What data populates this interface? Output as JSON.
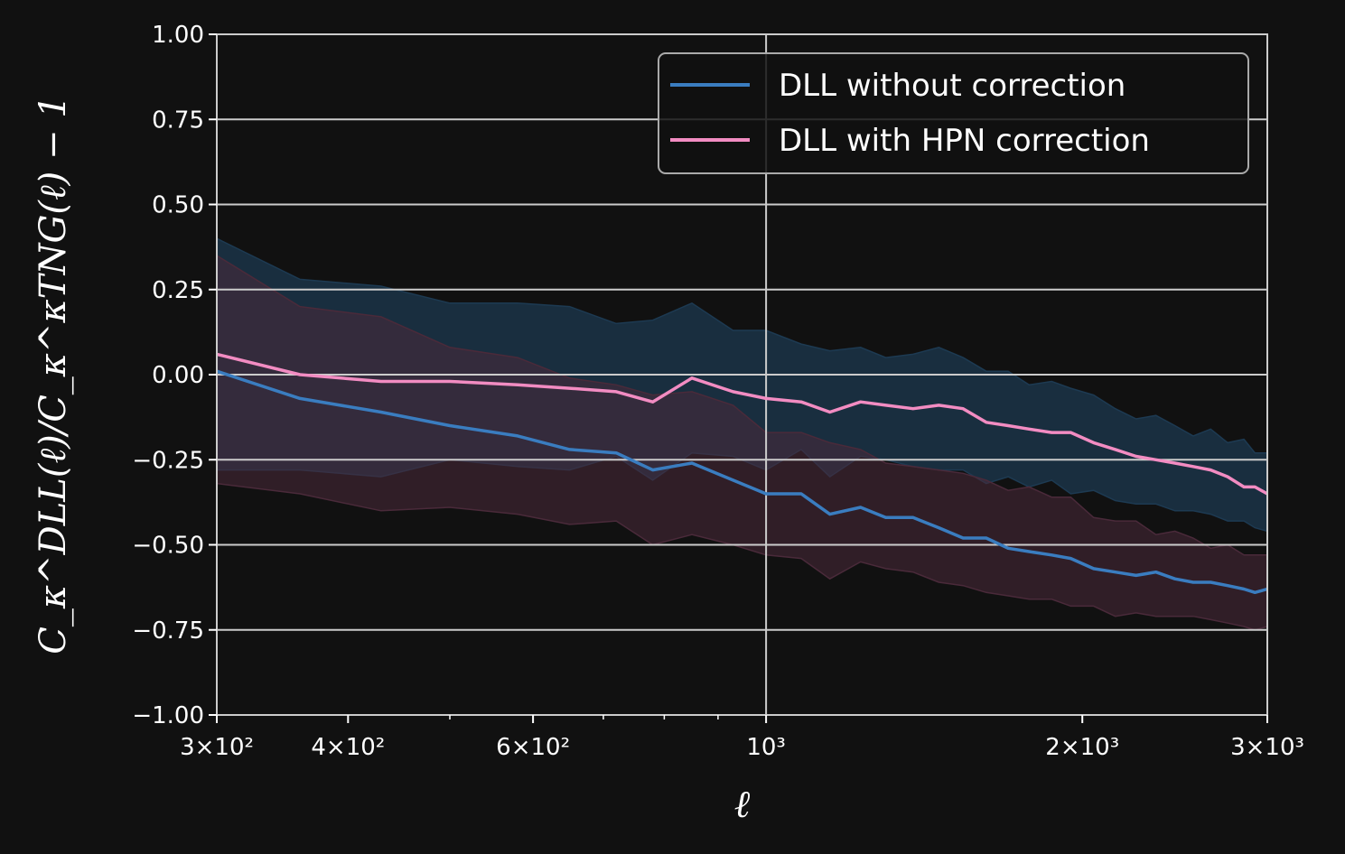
{
  "chart_data": {
    "type": "line",
    "xscale": "log",
    "xlim": [
      300,
      3000
    ],
    "ylim": [
      -1.0,
      1.0
    ],
    "grid": true,
    "legend_position": "upper-right",
    "xlabel": "ℓ",
    "ylabel": "C_κ^DLL(ℓ)/C_κ^κTNG(ℓ) − 1",
    "x_ticks": [
      {
        "value": 300,
        "label": "3×10²"
      },
      {
        "value": 400,
        "label": "4×10²"
      },
      {
        "value": 600,
        "label": "6×10²"
      },
      {
        "value": 1000,
        "label": "10³"
      },
      {
        "value": 2000,
        "label": "2×10³"
      },
      {
        "value": 3000,
        "label": "3×10³"
      }
    ],
    "y_ticks": [
      "1.00",
      "0.75",
      "0.50",
      "0.25",
      "0.00",
      "−0.25",
      "−0.50",
      "−0.75",
      "−1.00"
    ],
    "y_tick_values": [
      1.0,
      0.75,
      0.5,
      0.25,
      0.0,
      -0.25,
      -0.5,
      -0.75,
      -1.0
    ],
    "series": [
      {
        "name": "DLL without correction",
        "color": "#3a7dc0",
        "band_color": "#1d3a52",
        "x": [
          300,
          360,
          430,
          500,
          580,
          650,
          720,
          780,
          850,
          930,
          1000,
          1080,
          1150,
          1230,
          1300,
          1380,
          1460,
          1540,
          1620,
          1700,
          1780,
          1870,
          1950,
          2050,
          2150,
          2250,
          2350,
          2450,
          2550,
          2650,
          2750,
          2850,
          2920,
          3000
        ],
        "y": [
          0.01,
          -0.07,
          -0.11,
          -0.15,
          -0.18,
          -0.22,
          -0.23,
          -0.28,
          -0.26,
          -0.31,
          -0.35,
          -0.35,
          -0.41,
          -0.39,
          -0.42,
          -0.42,
          -0.45,
          -0.48,
          -0.48,
          -0.51,
          -0.52,
          -0.53,
          -0.54,
          -0.57,
          -0.58,
          -0.59,
          -0.58,
          -0.6,
          -0.61,
          -0.61,
          -0.62,
          -0.63,
          -0.64,
          -0.63
        ],
        "upper": [
          0.4,
          0.28,
          0.26,
          0.21,
          0.21,
          0.2,
          0.15,
          0.16,
          0.21,
          0.13,
          0.13,
          0.09,
          0.07,
          0.08,
          0.05,
          0.06,
          0.08,
          0.05,
          0.01,
          0.01,
          -0.03,
          -0.02,
          -0.04,
          -0.06,
          -0.1,
          -0.13,
          -0.12,
          -0.15,
          -0.18,
          -0.16,
          -0.2,
          -0.19,
          -0.23,
          -0.23
        ],
        "lower": [
          -0.28,
          -0.28,
          -0.3,
          -0.25,
          -0.27,
          -0.28,
          -0.24,
          -0.31,
          -0.23,
          -0.24,
          -0.28,
          -0.22,
          -0.3,
          -0.24,
          -0.25,
          -0.27,
          -0.28,
          -0.28,
          -0.32,
          -0.3,
          -0.33,
          -0.31,
          -0.35,
          -0.34,
          -0.37,
          -0.38,
          -0.38,
          -0.4,
          -0.4,
          -0.41,
          -0.43,
          -0.43,
          -0.45,
          -0.46
        ]
      },
      {
        "name": "DLL with HPN correction",
        "color": "#f28cc2",
        "band_color": "#4a2a3a",
        "x": [
          300,
          360,
          430,
          500,
          580,
          650,
          720,
          780,
          850,
          930,
          1000,
          1080,
          1150,
          1230,
          1300,
          1380,
          1460,
          1540,
          1620,
          1700,
          1780,
          1870,
          1950,
          2050,
          2150,
          2250,
          2350,
          2450,
          2550,
          2650,
          2750,
          2850,
          2920,
          3000
        ],
        "y": [
          0.06,
          0.0,
          -0.02,
          -0.02,
          -0.03,
          -0.04,
          -0.05,
          -0.08,
          -0.01,
          -0.05,
          -0.07,
          -0.08,
          -0.11,
          -0.08,
          -0.09,
          -0.1,
          -0.09,
          -0.1,
          -0.14,
          -0.15,
          -0.16,
          -0.17,
          -0.17,
          -0.2,
          -0.22,
          -0.24,
          -0.25,
          -0.26,
          -0.27,
          -0.28,
          -0.3,
          -0.33,
          -0.33,
          -0.35
        ],
        "upper": [
          0.35,
          0.2,
          0.17,
          0.08,
          0.05,
          -0.01,
          -0.03,
          -0.06,
          -0.05,
          -0.09,
          -0.17,
          -0.17,
          -0.2,
          -0.22,
          -0.26,
          -0.27,
          -0.28,
          -0.29,
          -0.31,
          -0.34,
          -0.33,
          -0.36,
          -0.36,
          -0.42,
          -0.43,
          -0.43,
          -0.47,
          -0.46,
          -0.48,
          -0.51,
          -0.5,
          -0.53,
          -0.53,
          -0.53
        ],
        "lower": [
          -0.32,
          -0.35,
          -0.4,
          -0.39,
          -0.41,
          -0.44,
          -0.43,
          -0.5,
          -0.47,
          -0.5,
          -0.53,
          -0.54,
          -0.6,
          -0.55,
          -0.57,
          -0.58,
          -0.61,
          -0.62,
          -0.64,
          -0.65,
          -0.66,
          -0.66,
          -0.68,
          -0.68,
          -0.71,
          -0.7,
          -0.71,
          -0.71,
          -0.71,
          -0.72,
          -0.73,
          -0.74,
          -0.75,
          -0.74
        ]
      }
    ]
  }
}
